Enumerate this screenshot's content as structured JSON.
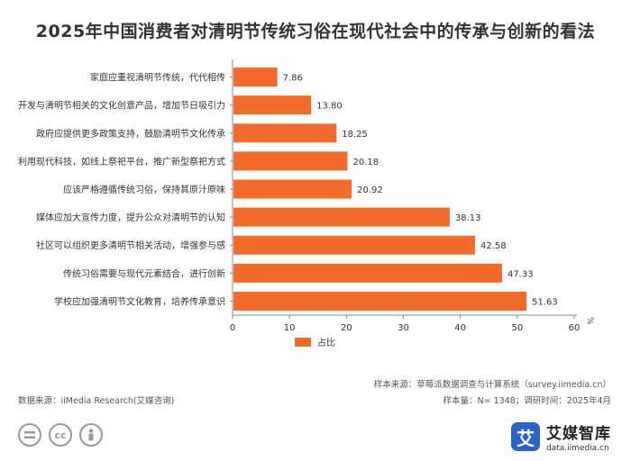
{
  "chart_data": {
    "type": "bar",
    "orientation": "horizontal",
    "title": "2025年中国消费者对清明节传统习俗在现代社会中的传承与创新的看法",
    "categories": [
      "家庭应重视清明节传统，代代相传",
      "开发与清明节相关的文化创意产品，增加节日吸引力",
      "政府应提供更多政策支持，鼓励清明节文化传承",
      "利用现代科技，如线上祭祀平台，推广新型祭祀方式",
      "应该严格遵循传统习俗，保持其原汁原味",
      "媒体应加大宣传力度，提升公众对清明节的认知",
      "社区可以组织更多清明节相关活动，增强参与感",
      "传统习俗需要与现代元素结合，进行创新",
      "学校应加强清明节文化教育，培养传承意识"
    ],
    "series": [
      {
        "name": "占比",
        "color": "#f26b2b",
        "values": [
          7.86,
          13.8,
          18.25,
          20.18,
          20.92,
          38.13,
          42.58,
          47.33,
          51.63
        ],
        "labels": [
          "7.86",
          "13.80",
          "18.25",
          "20.18",
          "20.92",
          "38.13",
          "42.58",
          "47.33",
          "51.63"
        ]
      }
    ],
    "xlim": [
      0,
      60
    ],
    "xticks": [
      "0",
      "10",
      "20",
      "30",
      "40",
      "50",
      "60"
    ],
    "unit_label": "%",
    "legend_position": "bottom-center",
    "grid": false
  },
  "footer": {
    "source_right": "样本来源：草莓派数据调查与计算系统（survey.iimedia.cn）",
    "source_left": "数据来源：iiMedia Research(艾媒咨询)",
    "sample": "样本量：N= 1348；调研时间：2025年4月"
  },
  "license_icons": [
    "=",
    "cc",
    "person"
  ],
  "brand": {
    "logo_char": "艾",
    "name": "艾媒智库",
    "url": "data.iimedia.cn",
    "color": "#2a64c8"
  }
}
